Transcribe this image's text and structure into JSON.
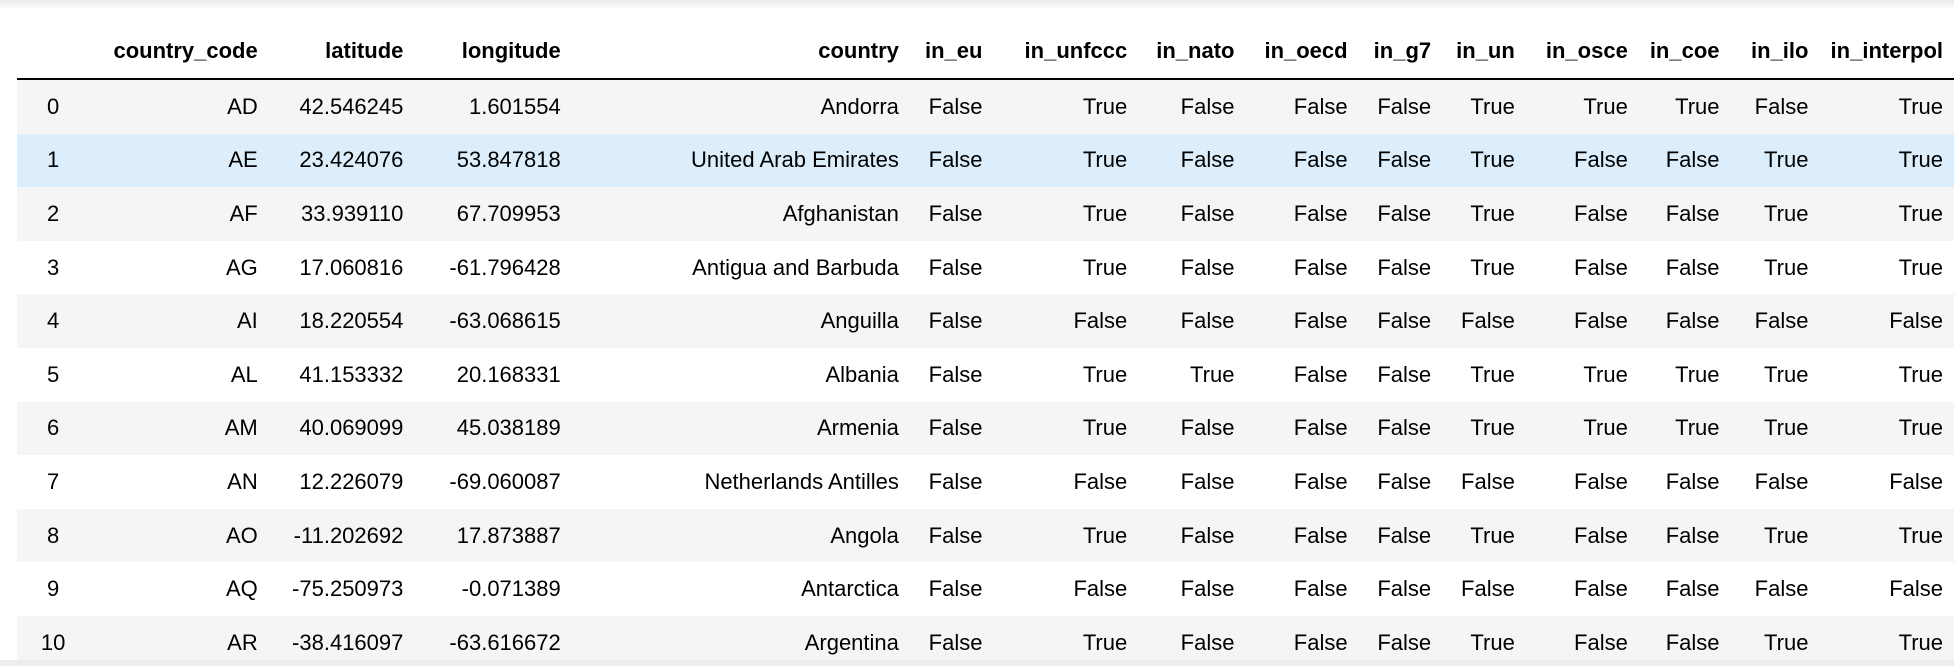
{
  "table": {
    "columns": [
      "",
      "country_code",
      "latitude",
      "longitude",
      "country",
      "in_eu",
      "in_unfccc",
      "in_nato",
      "in_oecd",
      "in_g7",
      "in_un",
      "in_osce",
      "in_coe",
      "in_ilo",
      "in_interpol"
    ],
    "rows": [
      [
        "0",
        "AD",
        "42.546245",
        "1.601554",
        "Andorra",
        "False",
        "True",
        "False",
        "False",
        "False",
        "True",
        "True",
        "True",
        "False",
        "True"
      ],
      [
        "1",
        "AE",
        "23.424076",
        "53.847818",
        "United Arab Emirates",
        "False",
        "True",
        "False",
        "False",
        "False",
        "True",
        "False",
        "False",
        "True",
        "True"
      ],
      [
        "2",
        "AF",
        "33.939110",
        "67.709953",
        "Afghanistan",
        "False",
        "True",
        "False",
        "False",
        "False",
        "True",
        "False",
        "False",
        "True",
        "True"
      ],
      [
        "3",
        "AG",
        "17.060816",
        "-61.796428",
        "Antigua and Barbuda",
        "False",
        "True",
        "False",
        "False",
        "False",
        "True",
        "False",
        "False",
        "True",
        "True"
      ],
      [
        "4",
        "AI",
        "18.220554",
        "-63.068615",
        "Anguilla",
        "False",
        "False",
        "False",
        "False",
        "False",
        "False",
        "False",
        "False",
        "False",
        "False"
      ],
      [
        "5",
        "AL",
        "41.153332",
        "20.168331",
        "Albania",
        "False",
        "True",
        "True",
        "False",
        "False",
        "True",
        "True",
        "True",
        "True",
        "True"
      ],
      [
        "6",
        "AM",
        "40.069099",
        "45.038189",
        "Armenia",
        "False",
        "True",
        "False",
        "False",
        "False",
        "True",
        "True",
        "True",
        "True",
        "True"
      ],
      [
        "7",
        "AN",
        "12.226079",
        "-69.060087",
        "Netherlands Antilles",
        "False",
        "False",
        "False",
        "False",
        "False",
        "False",
        "False",
        "False",
        "False",
        "False"
      ],
      [
        "8",
        "AO",
        "-11.202692",
        "17.873887",
        "Angola",
        "False",
        "True",
        "False",
        "False",
        "False",
        "True",
        "False",
        "False",
        "True",
        "True"
      ],
      [
        "9",
        "AQ",
        "-75.250973",
        "-0.071389",
        "Antarctica",
        "False",
        "False",
        "False",
        "False",
        "False",
        "False",
        "False",
        "False",
        "False",
        "False"
      ],
      [
        "10",
        "AR",
        "-38.416097",
        "-63.616672",
        "Argentina",
        "False",
        "True",
        "False",
        "False",
        "False",
        "True",
        "False",
        "False",
        "True",
        "True"
      ]
    ],
    "hovered_row": 1
  },
  "colors": {
    "stripe": "#f5f5f5",
    "hover": "#dceefb",
    "header_rule": "#000000"
  }
}
